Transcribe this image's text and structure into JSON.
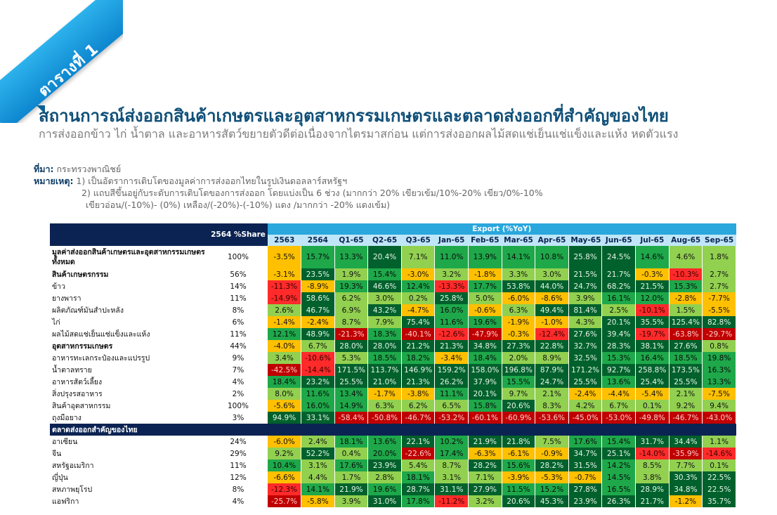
{
  "ribbon": {
    "label": "ตารางที่ 1"
  },
  "title": "สถานการณ์ส่งออกสินค้าเกษตรและอุตสาหกรรมเกษตรและตลาดส่งออกที่สำคัญของไทย",
  "subtitle": "การส่งออกข้าว ไก่ น้ำตาล และอาหารสัตว์ขยายตัวดีต่อเนื่องจากไตรมาสก่อน แต่การส่งออกผลไม้สดแช่เย็นแช่แข็งและแห้ง หดตัวแรง",
  "notes": {
    "source_label": "ที่มา:",
    "source_text": " กระทรวงพาณิชย์",
    "remark_label": "หมายเหตุ:",
    "remark_1": " 1) เป็นอัตราการเติบโตของมูลค่าการส่งออกไทยในรูปเงินดอลลาร์สหรัฐฯ",
    "remark_2": "2) แถบสีขึ้นอยู่กับระดับการเติบโตของการส่งออก โดยแบ่งเป็น 6 ช่วง (มากกว่า 20% เขียวเข้ม/10%-20% เขียว/0%-10%",
    "remark_3": "เขียวอ่อน/(-10%)- (0%) เหลือง/(-20%)-(-10%) แดง /มากกว่า -20% แดงเข้ม)"
  },
  "table": {
    "share_header": "2564 %Share",
    "export_header": "Export (%YoY)",
    "columns": [
      "2563",
      "2564",
      "Q1-65",
      "Q2-65",
      "Q3-65",
      "Jan-65",
      "Feb-65",
      "Mar-65",
      "Apr-65",
      "May-65",
      "Jun-65",
      "Jul-65",
      "Aug-65",
      "Sep-65"
    ],
    "rows": [
      {
        "label": "มูลค่าส่งออกสินค้าเกษตรและอุตสาหกรรมเกษตรทั้งหมด",
        "bold": true,
        "share": "100%",
        "values": [
          "-3.5%",
          "15.7%",
          "13.3%",
          "20.4%",
          "7.1%",
          "11.0%",
          "13.9%",
          "14.1%",
          "10.8%",
          "25.8%",
          "24.5%",
          "14.6%",
          "4.6%",
          "1.8%"
        ]
      },
      {
        "label": "สินค้าเกษตรกรรม",
        "bold": true,
        "share": "56%",
        "values": [
          "-3.1%",
          "23.5%",
          "1.9%",
          "15.4%",
          "-3.0%",
          "3.2%",
          "-1.8%",
          "3.3%",
          "3.0%",
          "21.5%",
          "21.7%",
          "-0.3%",
          "-10.3%",
          "2.7%"
        ]
      },
      {
        "label": "ข้าว",
        "bold": false,
        "share": "14%",
        "values": [
          "-11.3%",
          "-8.9%",
          "19.3%",
          "46.6%",
          "12.4%",
          "-13.3%",
          "17.7%",
          "53.8%",
          "44.0%",
          "24.7%",
          "68.2%",
          "21.5%",
          "15.3%",
          "2.7%"
        ]
      },
      {
        "label": "ยางพารา",
        "bold": false,
        "share": "11%",
        "values": [
          "-14.9%",
          "58.6%",
          "6.2%",
          "3.0%",
          "0.2%",
          "25.8%",
          "5.0%",
          "-6.0%",
          "-8.6%",
          "3.9%",
          "16.1%",
          "12.0%",
          "-2.8%",
          "-7.7%"
        ]
      },
      {
        "label": "ผลิตภัณฑ์มันสำปะหลัง",
        "bold": false,
        "share": "8%",
        "values": [
          "2.6%",
          "46.7%",
          "6.9%",
          "43.2%",
          "-4.7%",
          "16.0%",
          "-0.6%",
          "6.3%",
          "49.4%",
          "81.4%",
          "2.5%",
          "-10.1%",
          "1.5%",
          "-5.5%"
        ]
      },
      {
        "label": "ไก่",
        "bold": false,
        "share": "6%",
        "values": [
          "-1.4%",
          "-2.4%",
          "8.7%",
          "7.9%",
          "75.4%",
          "11.6%",
          "19.6%",
          "-1.9%",
          "-1.0%",
          "4.3%",
          "20.1%",
          "35.5%",
          "125.4%",
          "82.8%"
        ]
      },
      {
        "label": "ผลไม้สดแช่เย็นแช่แข็งและแห้ง",
        "bold": false,
        "share": "11%",
        "values": [
          "12.1%",
          "48.9%",
          "-21.3%",
          "18.3%",
          "-40.1%",
          "-12.6%",
          "-47.9%",
          "-0.3%",
          "-12.4%",
          "27.6%",
          "39.4%",
          "-19.7%",
          "-63.8%",
          "-29.7%"
        ]
      },
      {
        "label": "อุตสาหกรรมเกษตร",
        "bold": true,
        "share": "44%",
        "values": [
          "-4.0%",
          "6.7%",
          "28.0%",
          "28.0%",
          "21.2%",
          "21.3%",
          "34.8%",
          "27.3%",
          "22.8%",
          "32.7%",
          "28.3%",
          "38.1%",
          "27.6%",
          "0.8%"
        ]
      },
      {
        "label": "อาหารทะเลกระป๋องและแปรรูป",
        "bold": false,
        "share": "9%",
        "values": [
          "3.4%",
          "-10.6%",
          "5.3%",
          "18.5%",
          "18.2%",
          "-3.4%",
          "18.4%",
          "2.0%",
          "8.9%",
          "32.5%",
          "15.3%",
          "16.4%",
          "18.5%",
          "19.8%"
        ]
      },
      {
        "label": "น้ำตาลทราย",
        "bold": false,
        "share": "7%",
        "values": [
          "-42.5%",
          "-14.4%",
          "171.5%",
          "113.7%",
          "146.9%",
          "159.2%",
          "158.0%",
          "196.8%",
          "87.9%",
          "171.2%",
          "92.7%",
          "258.8%",
          "173.5%",
          "16.3%"
        ]
      },
      {
        "label": "อาหารสัตว์เลี้ยง",
        "bold": false,
        "share": "4%",
        "values": [
          "18.4%",
          "23.2%",
          "25.5%",
          "21.0%",
          "21.3%",
          "26.2%",
          "37.9%",
          "15.5%",
          "24.7%",
          "25.5%",
          "13.6%",
          "25.4%",
          "25.5%",
          "13.3%"
        ]
      },
      {
        "label": "สิ่งปรุงรสอาหาร",
        "bold": false,
        "share": "2%",
        "values": [
          "8.0%",
          "11.6%",
          "13.4%",
          "-1.7%",
          "-3.8%",
          "11.1%",
          "20.1%",
          "9.7%",
          "2.1%",
          "-2.4%",
          "-4.4%",
          "-5.4%",
          "2.1%",
          "-7.5%"
        ]
      },
      {
        "label": "สินค้าอุตสาหกรรม",
        "bold": false,
        "share": "100%",
        "values": [
          "-5.6%",
          "16.0%",
          "14.9%",
          "6.3%",
          "6.2%",
          "6.5%",
          "15.8%",
          "20.6%",
          "8.3%",
          "4.2%",
          "6.7%",
          "0.1%",
          "9.2%",
          "9.4%"
        ]
      },
      {
        "label": "ถุงมือยาง",
        "bold": false,
        "share": "3%",
        "values": [
          "94.9%",
          "33.1%",
          "-58.4%",
          "-50.8%",
          "-46.7%",
          "-53.2%",
          "-60.1%",
          "-60.9%",
          "-53.6%",
          "-45.0%",
          "-53.0%",
          "-49.8%",
          "-46.7%",
          "-43.0%"
        ]
      }
    ],
    "section_label": "ตลาดส่งออกสำคัญของไทย",
    "market_rows": [
      {
        "label": "อาเซียน",
        "share": "24%",
        "values": [
          "-6.0%",
          "2.4%",
          "18.1%",
          "13.6%",
          "22.1%",
          "10.2%",
          "21.9%",
          "21.8%",
          "7.5%",
          "17.6%",
          "15.4%",
          "31.7%",
          "34.4%",
          "1.1%"
        ]
      },
      {
        "label": "จีน",
        "share": "29%",
        "values": [
          "9.2%",
          "52.2%",
          "0.4%",
          "20.0%",
          "-22.6%",
          "17.4%",
          "-6.3%",
          "-6.1%",
          "-0.9%",
          "34.7%",
          "25.1%",
          "-14.0%",
          "-35.9%",
          "-14.6%"
        ]
      },
      {
        "label": "สหรัฐอเมริกา",
        "share": "11%",
        "values": [
          "10.4%",
          "3.1%",
          "17.6%",
          "23.9%",
          "5.4%",
          "8.7%",
          "28.2%",
          "15.6%",
          "28.2%",
          "31.5%",
          "14.2%",
          "8.5%",
          "7.7%",
          "0.1%"
        ]
      },
      {
        "label": "ญี่ปุ่น",
        "share": "12%",
        "values": [
          "-6.6%",
          "4.4%",
          "1.7%",
          "2.8%",
          "18.1%",
          "3.1%",
          "7.1%",
          "-3.9%",
          "-5.3%",
          "-0.7%",
          "14.5%",
          "3.8%",
          "30.3%",
          "22.5%"
        ]
      },
      {
        "label": "สหภาพยุโรป",
        "share": "8%",
        "values": [
          "-12.3%",
          "14.1%",
          "21.9%",
          "19.6%",
          "28.7%",
          "31.1%",
          "27.9%",
          "11.5%",
          "15.2%",
          "27.8%",
          "16.5%",
          "28.9%",
          "34.8%",
          "22.5%"
        ]
      },
      {
        "label": "แอฟริกา",
        "share": "4%",
        "values": [
          "-25.7%",
          "-5.8%",
          "3.9%",
          "31.0%",
          "17.8%",
          "-11.2%",
          "3.2%",
          "20.6%",
          "45.3%",
          "23.9%",
          "26.3%",
          "21.7%",
          "-1.2%",
          "35.7%"
        ]
      }
    ]
  }
}
